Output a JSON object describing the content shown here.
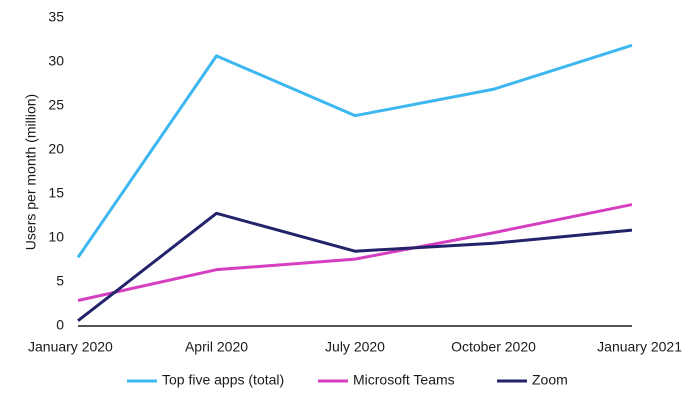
{
  "chart_data": {
    "type": "line",
    "y_label": "Users per month (million)",
    "categories": [
      "January 2020",
      "April 2020",
      "July 2020",
      "October 2020",
      "January 2021"
    ],
    "series": [
      {
        "name": "Top five apps (total)",
        "color": "#3db7f0",
        "values": [
          7.8,
          30.7,
          23.9,
          26.9,
          31.9
        ]
      },
      {
        "name": "Microsoft Teams",
        "color": "#d63fc0",
        "values": [
          2.9,
          6.4,
          7.6,
          10.6,
          13.8
        ]
      },
      {
        "name": "Zoom",
        "color": "#23236b",
        "values": [
          0.6,
          12.8,
          8.5,
          9.4,
          10.9
        ]
      }
    ],
    "ylim": [
      0,
      35
    ],
    "yticks": [
      0,
      5,
      10,
      15,
      20,
      25,
      30,
      35
    ],
    "grid": false
  }
}
